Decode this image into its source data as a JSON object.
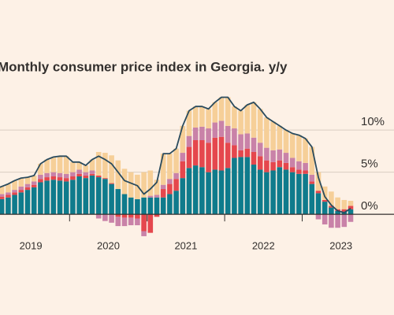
{
  "chart_data": {
    "type": "stacked-bar-line",
    "title": "Monthly consumer price index in Georgia. y/y",
    "categories": [
      null,
      null,
      null,
      null,
      null,
      null,
      null,
      null,
      null,
      null,
      null,
      null,
      null,
      null,
      null,
      null,
      null,
      null,
      null,
      null,
      null,
      null,
      null,
      null,
      null,
      null,
      null,
      null,
      null,
      null,
      null,
      null,
      null,
      null,
      null,
      null,
      null,
      null,
      null,
      null,
      null,
      null,
      null,
      null,
      null,
      null,
      null,
      null,
      null,
      null,
      null,
      null,
      null,
      null,
      null,
      null
    ],
    "year_labels": [
      "2019",
      "2020",
      "2021",
      "2022",
      "2023"
    ],
    "ylim": [
      -4,
      15
    ],
    "yticks": [
      {
        "value": 0,
        "label": "0%"
      },
      {
        "value": 5,
        "label": "5%"
      },
      {
        "value": 10,
        "label": "10%"
      }
    ],
    "grid": true,
    "series": [
      {
        "color": "#0f7b8c",
        "values": [
          1.5,
          1.8,
          2.0,
          2.3,
          2.6,
          2.9,
          3.2,
          3.8,
          4.0,
          4.1,
          4.0,
          3.9,
          4.1,
          4.5,
          4.3,
          4.6,
          4.4,
          4.2,
          3.6,
          3.0,
          2.4,
          2.0,
          1.8,
          2.0,
          2.0,
          2.0,
          2.0,
          2.4,
          2.8,
          4.3,
          5.5,
          5.8,
          5.6,
          5.0,
          5.3,
          5.2,
          5.5,
          6.7,
          6.8,
          6.8,
          5.9,
          5.3,
          5.0,
          5.2,
          5.6,
          5.3,
          5.0,
          4.8,
          4.8,
          3.6,
          2.5,
          1.5,
          0.8,
          0.4,
          0.3,
          0.6
        ]
      },
      {
        "color": "#e5474d",
        "values": [
          0.3,
          0.3,
          0.3,
          0.3,
          0.3,
          0.3,
          0.3,
          0.4,
          0.4,
          0.4,
          0.4,
          0.4,
          0.4,
          0.3,
          0.3,
          0.2,
          0.2,
          0.1,
          0.1,
          -0.3,
          -0.4,
          -0.4,
          -0.5,
          -2.0,
          -2.2,
          -0.3,
          1.0,
          1.2,
          1.4,
          2.0,
          2.5,
          3.0,
          3.2,
          3.5,
          3.8,
          4.0,
          3.0,
          1.5,
          0.8,
          1.0,
          1.5,
          1.6,
          1.4,
          1.0,
          0.8,
          0.8,
          0.6,
          0.5,
          0.4,
          0.3,
          0.3,
          0.2,
          0.2,
          0.2,
          0.3,
          0.4
        ]
      },
      {
        "color": "#c982a8",
        "values": [
          0.3,
          0.3,
          0.3,
          0.3,
          0.4,
          0.4,
          0.4,
          0.5,
          0.5,
          0.5,
          0.5,
          0.5,
          0.5,
          0.5,
          0.4,
          0.4,
          -0.5,
          -0.8,
          -1.0,
          -1.1,
          -1.0,
          -0.9,
          -0.8,
          -0.6,
          0.2,
          0.3,
          0.5,
          0.6,
          0.7,
          1.0,
          1.3,
          1.5,
          1.6,
          1.7,
          1.8,
          1.9,
          2.0,
          2.0,
          1.9,
          1.8,
          1.7,
          1.6,
          1.5,
          1.4,
          1.3,
          1.2,
          1.1,
          1.0,
          0.9,
          0.8,
          -0.6,
          -1.2,
          -1.6,
          -1.6,
          -1.5,
          -0.9
        ]
      },
      {
        "color": "#f6cf98",
        "values": [
          0.9,
          0.9,
          1.0,
          1.1,
          1.0,
          0.8,
          0.7,
          1.3,
          1.6,
          1.8,
          2.0,
          2.1,
          1.2,
          0.9,
          0.8,
          1.3,
          2.8,
          3.0,
          3.3,
          3.4,
          3.0,
          3.0,
          2.9,
          3.0,
          3.0,
          1.8,
          3.7,
          3.0,
          2.9,
          3.2,
          3.0,
          2.5,
          2.4,
          2.3,
          2.4,
          2.8,
          3.4,
          2.6,
          2.8,
          3.4,
          4.2,
          4.0,
          3.6,
          3.4,
          2.8,
          2.7,
          2.9,
          3.1,
          2.9,
          3.3,
          2.2,
          1.6,
          1.7,
          1.4,
          1.1,
          0.6
        ]
      }
    ],
    "line": {
      "color": "#2a4b5e",
      "values": [
        3.0,
        3.3,
        3.6,
        4.0,
        4.3,
        4.4,
        4.6,
        6.0,
        6.5,
        6.8,
        6.9,
        6.9,
        6.2,
        6.2,
        5.8,
        6.5,
        6.9,
        6.5,
        6.0,
        5.0,
        4.0,
        3.7,
        3.4,
        2.4,
        3.0,
        3.8,
        7.2,
        7.2,
        7.8,
        10.5,
        12.3,
        12.8,
        12.8,
        12.5,
        13.3,
        13.9,
        13.9,
        12.8,
        12.3,
        13.0,
        13.3,
        12.5,
        11.5,
        11.0,
        10.5,
        10.0,
        9.6,
        9.4,
        9.0,
        8.0,
        4.4,
        2.1,
        1.1,
        0.4,
        0.2,
        0.7
      ]
    }
  }
}
